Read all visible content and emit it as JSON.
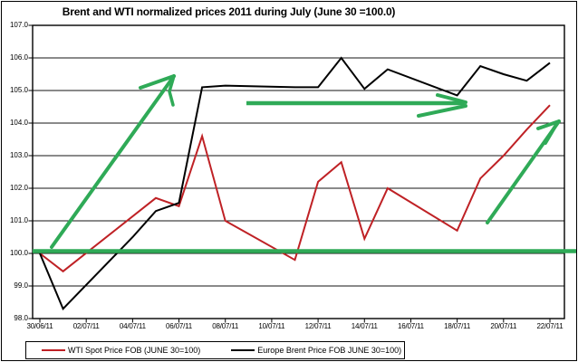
{
  "chart_data": {
    "type": "line",
    "title": "Brent and WTI normalized prices 2011 during July  (June 30 =100.0)",
    "x_axis": {
      "tick_labels": [
        "30/06/11",
        "02/07/11",
        "04/07/11",
        "06/07/11",
        "08/07/11",
        "10/07/11",
        "12/07/11",
        "14/07/11",
        "16/07/11",
        "18/07/11",
        "20/07/11",
        "22/07/11"
      ],
      "tick_days": [
        0,
        2,
        4,
        6,
        8,
        10,
        12,
        14,
        16,
        18,
        20,
        22
      ],
      "grid": false
    },
    "y_axis": {
      "min": 98.0,
      "max": 107.0,
      "step": 1.0,
      "decimals": 1,
      "grid": true
    },
    "legend_position": "bottom",
    "series": [
      {
        "name": "WTI Spot Price FOB (JUNE 30=100)",
        "color": "#bf2125",
        "width": 2,
        "points": [
          {
            "date": "30/06/11",
            "day": 0,
            "value": 100.0
          },
          {
            "date": "01/07/11",
            "day": 1,
            "value": 99.45
          },
          {
            "date": "05/07/11",
            "day": 5,
            "value": 101.7
          },
          {
            "date": "06/07/11",
            "day": 6,
            "value": 101.45
          },
          {
            "date": "07/07/11",
            "day": 7,
            "value": 103.6
          },
          {
            "date": "08/07/11",
            "day": 8,
            "value": 101.0
          },
          {
            "date": "11/07/11",
            "day": 11,
            "value": 99.8
          },
          {
            "date": "12/07/11",
            "day": 12,
            "value": 102.2
          },
          {
            "date": "13/07/11",
            "day": 13,
            "value": 102.8
          },
          {
            "date": "14/07/11",
            "day": 14,
            "value": 100.45
          },
          {
            "date": "15/07/11",
            "day": 15,
            "value": 102.0
          },
          {
            "date": "18/07/11",
            "day": 18,
            "value": 100.7
          },
          {
            "date": "19/07/11",
            "day": 19,
            "value": 102.3
          },
          {
            "date": "20/07/11",
            "day": 20,
            "value": 103.0
          },
          {
            "date": "21/07/11",
            "day": 21,
            "value": 103.8
          },
          {
            "date": "22/07/11",
            "day": 22,
            "value": 104.55
          }
        ]
      },
      {
        "name": "Europe Brent Price FOB JUNE 30=100)",
        "color": "#000000",
        "width": 2,
        "points": [
          {
            "date": "30/06/11",
            "day": 0,
            "value": 100.0
          },
          {
            "date": "01/07/11",
            "day": 1,
            "value": 98.3
          },
          {
            "date": "04/07/11",
            "day": 4,
            "value": 100.5
          },
          {
            "date": "05/07/11",
            "day": 5,
            "value": 101.3
          },
          {
            "date": "06/07/11",
            "day": 6,
            "value": 101.55
          },
          {
            "date": "07/07/11",
            "day": 7,
            "value": 105.1
          },
          {
            "date": "08/07/11",
            "day": 8,
            "value": 105.15
          },
          {
            "date": "11/07/11",
            "day": 11,
            "value": 105.1
          },
          {
            "date": "12/07/11",
            "day": 12,
            "value": 105.1
          },
          {
            "date": "13/07/11",
            "day": 13,
            "value": 106.0
          },
          {
            "date": "14/07/11",
            "day": 14,
            "value": 105.05
          },
          {
            "date": "15/07/11",
            "day": 15,
            "value": 105.65
          },
          {
            "date": "18/07/11",
            "day": 18,
            "value": 104.85
          },
          {
            "date": "19/07/11",
            "day": 19,
            "value": 105.75
          },
          {
            "date": "20/07/11",
            "day": 20,
            "value": 105.5
          },
          {
            "date": "21/07/11",
            "day": 21,
            "value": 105.3
          },
          {
            "date": "22/07/11",
            "day": 22,
            "value": 105.85
          }
        ]
      }
    ],
    "annotations": {
      "color": "#2faa57",
      "shapes": [
        {
          "name": "baseline-100-line",
          "width": 4.5,
          "cap": "butt",
          "points": [
            [
              36,
              277.5
            ],
            [
              636,
              277.5
            ]
          ]
        },
        {
          "name": "up-arrow-early-july-shaft",
          "width": 4,
          "cap": "round",
          "points": [
            [
              57,
              273
            ],
            [
              192,
              84
            ]
          ]
        },
        {
          "name": "up-arrow-early-july-barb-left",
          "width": 4,
          "cap": "round",
          "points": [
            [
              155,
              97
            ],
            [
              192,
              84
            ]
          ]
        },
        {
          "name": "up-arrow-early-july-barb-down",
          "width": 3.5,
          "cap": "round",
          "points": [
            [
              192,
              84
            ],
            [
              187,
              101
            ],
            [
              191,
              116
            ]
          ]
        },
        {
          "name": "flat-arrow-mid-july-shaft",
          "width": 4.5,
          "cap": "butt",
          "points": [
            [
              272,
              114
            ],
            [
              513,
              114
            ]
          ]
        },
        {
          "name": "flat-arrow-mid-july-barb-upper",
          "width": 4,
          "cap": "round",
          "points": [
            [
              483,
              105
            ],
            [
              514,
              113
            ]
          ]
        },
        {
          "name": "flat-arrow-mid-july-barb-lower",
          "width": 4,
          "cap": "round",
          "points": [
            [
              462,
              128
            ],
            [
              514,
              117
            ]
          ]
        },
        {
          "name": "up-arrow-late-july-shaft",
          "width": 4,
          "cap": "round",
          "points": [
            [
              538,
              246
            ],
            [
              617,
              134
            ]
          ]
        },
        {
          "name": "up-arrow-late-july-barb-left",
          "width": 4,
          "cap": "round",
          "points": [
            [
              594,
              142
            ],
            [
              617,
              134
            ]
          ]
        },
        {
          "name": "up-arrow-late-july-barb-lower",
          "width": 4,
          "cap": "round",
          "points": [
            [
              602,
              158
            ],
            [
              615,
              136
            ]
          ]
        }
      ]
    }
  },
  "legend": {
    "entries": [
      {
        "label": "WTI Spot Price FOB (JUNE 30=100)",
        "color": "#bf2125"
      },
      {
        "label": "Europe Brent Price FOB JUNE 30=100)",
        "color": "#000000"
      }
    ]
  }
}
